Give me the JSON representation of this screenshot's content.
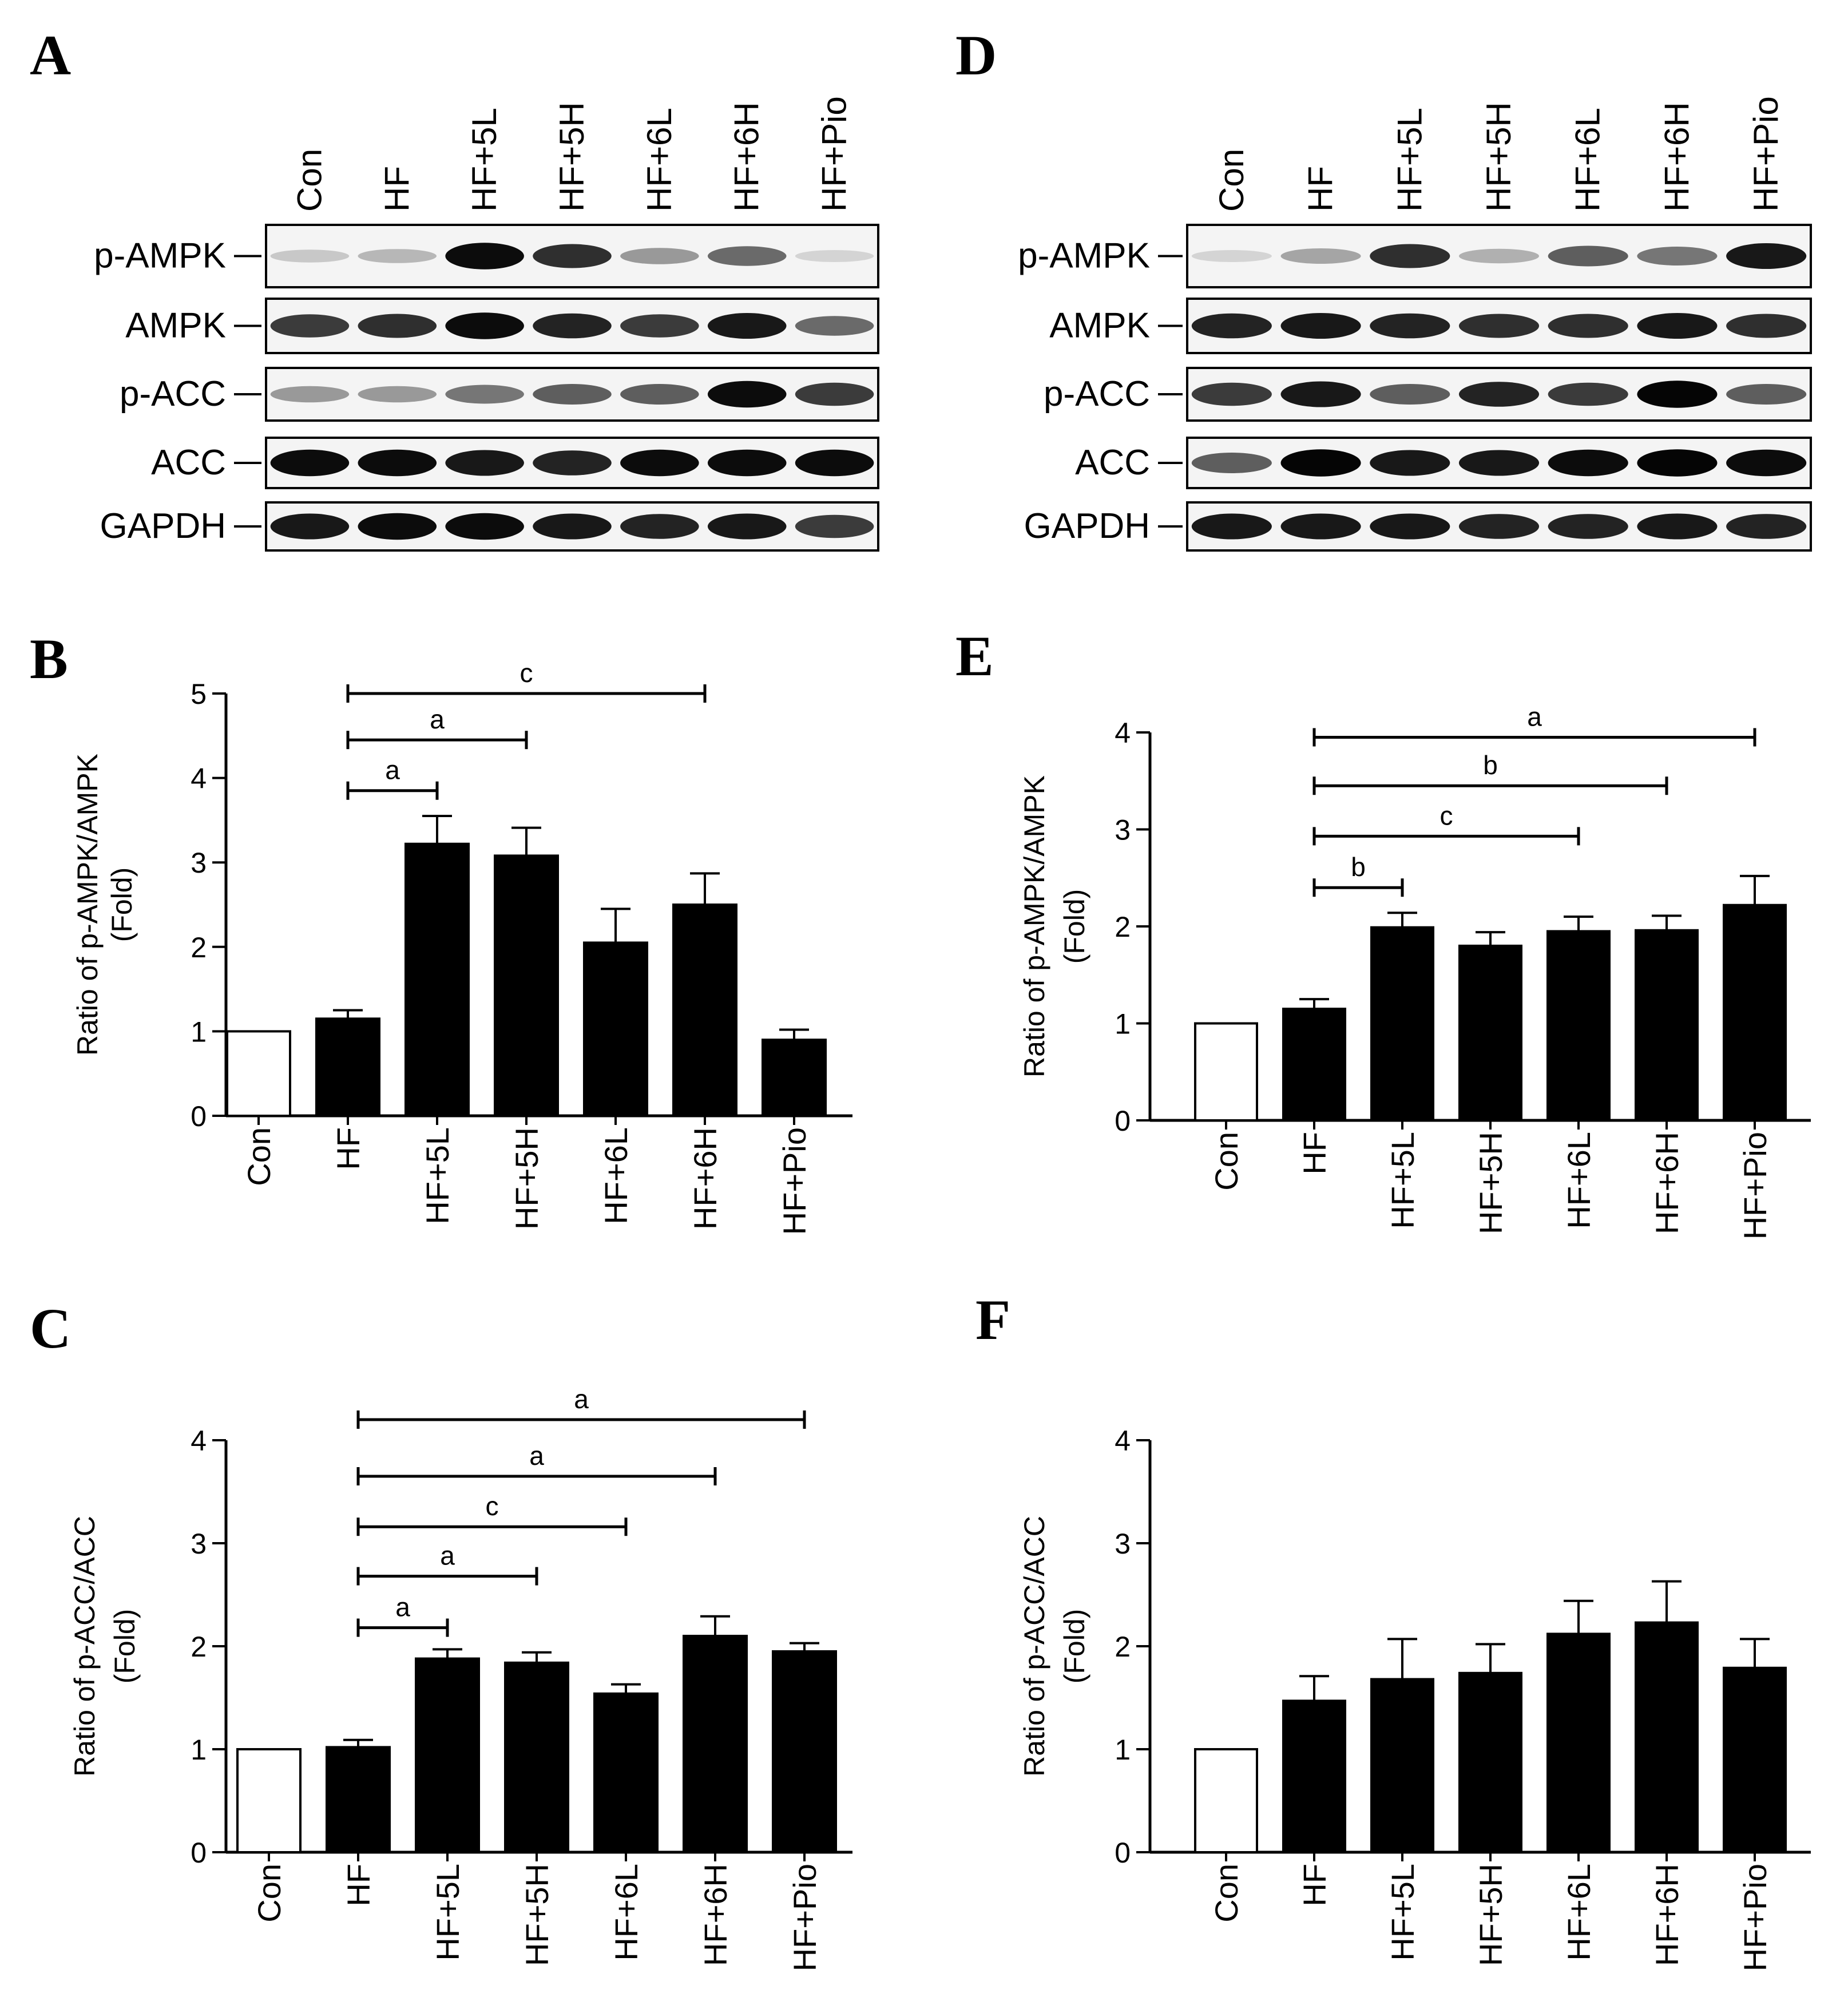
{
  "blots": [
    {
      "panel": "A",
      "lanes": [
        "Con",
        "HF",
        "HF+5L",
        "HF+5H",
        "HF+6L",
        "HF+6H",
        "HF+Pio"
      ],
      "rows": [
        {
          "label": "p-AMPK",
          "intensity": [
            0.15,
            0.22,
            0.95,
            0.8,
            0.35,
            0.55,
            0.1
          ]
        },
        {
          "label": "AMPK",
          "intensity": [
            0.75,
            0.8,
            0.95,
            0.85,
            0.75,
            0.9,
            0.55
          ]
        },
        {
          "label": "p-ACC",
          "intensity": [
            0.35,
            0.35,
            0.5,
            0.6,
            0.6,
            0.95,
            0.75
          ]
        },
        {
          "label": "ACC",
          "intensity": [
            0.95,
            0.95,
            0.9,
            0.85,
            0.95,
            0.95,
            0.95
          ]
        },
        {
          "label": "GAPDH",
          "intensity": [
            0.9,
            0.95,
            0.95,
            0.9,
            0.85,
            0.9,
            0.75
          ]
        }
      ]
    },
    {
      "panel": "D",
      "lanes": [
        "Con",
        "HF",
        "HF+5L",
        "HF+5H",
        "HF+6L",
        "HF+6H",
        "HF+Pio"
      ],
      "rows": [
        {
          "label": "p-AMPK",
          "intensity": [
            0.1,
            0.3,
            0.8,
            0.25,
            0.6,
            0.5,
            0.9
          ]
        },
        {
          "label": "AMPK",
          "intensity": [
            0.85,
            0.9,
            0.85,
            0.8,
            0.8,
            0.9,
            0.8
          ]
        },
        {
          "label": "p-ACC",
          "intensity": [
            0.75,
            0.9,
            0.6,
            0.85,
            0.75,
            0.98,
            0.6
          ]
        },
        {
          "label": "ACC",
          "intensity": [
            0.6,
            0.98,
            0.9,
            0.9,
            0.95,
            0.98,
            0.95
          ]
        },
        {
          "label": "GAPDH",
          "intensity": [
            0.9,
            0.9,
            0.9,
            0.85,
            0.85,
            0.9,
            0.85
          ]
        }
      ]
    }
  ],
  "chart_data": [
    {
      "panel": "B",
      "type": "bar",
      "categories": [
        "Con",
        "HF",
        "HF+5L",
        "HF+5H",
        "HF+6L",
        "HF+6H",
        "HF+Pio"
      ],
      "values": [
        1.0,
        1.15,
        3.22,
        3.08,
        2.05,
        2.5,
        0.9
      ],
      "errors": [
        0,
        0.1,
        0.33,
        0.33,
        0.4,
        0.37,
        0.12
      ],
      "fill": [
        "#ffffff",
        "#000000",
        "#000000",
        "#000000",
        "#000000",
        "#000000",
        "#000000"
      ],
      "ylabel": [
        "Ratio of p-AMPK/AMPK",
        "(Fold)"
      ],
      "ylim": [
        0,
        5
      ],
      "yticks": [
        0,
        1,
        2,
        3,
        4,
        5
      ],
      "significance": [
        {
          "from": "HF",
          "to": "HF+5L",
          "label": "a",
          "y": 3.85
        },
        {
          "from": "HF",
          "to": "HF+5H",
          "label": "a",
          "y": 4.45
        },
        {
          "from": "HF",
          "to": "HF+6H",
          "label": "c",
          "y": 5.0
        }
      ]
    },
    {
      "panel": "C",
      "type": "bar",
      "categories": [
        "Con",
        "HF",
        "HF+5L",
        "HF+5H",
        "HF+6L",
        "HF+6H",
        "HF+Pio"
      ],
      "values": [
        1.0,
        1.02,
        1.88,
        1.84,
        1.54,
        2.1,
        1.95
      ],
      "errors": [
        0,
        0.07,
        0.09,
        0.1,
        0.09,
        0.19,
        0.08
      ],
      "fill": [
        "#ffffff",
        "#000000",
        "#000000",
        "#000000",
        "#000000",
        "#000000",
        "#000000"
      ],
      "ylabel": [
        "Ratio of p-ACC/ACC",
        "(Fold)"
      ],
      "ylim": [
        0,
        4
      ],
      "yticks": [
        0,
        1,
        2,
        3,
        4
      ],
      "significance": [
        {
          "from": "HF",
          "to": "HF+5L",
          "label": "a",
          "y": 2.18
        },
        {
          "from": "HF",
          "to": "HF+5H",
          "label": "a",
          "y": 2.68
        },
        {
          "from": "HF",
          "to": "HF+6L",
          "label": "c",
          "y": 3.16
        },
        {
          "from": "HF",
          "to": "HF+6H",
          "label": "a",
          "y": 3.65
        },
        {
          "from": "HF",
          "to": "HF+Pio",
          "label": "a",
          "y": 4.2
        }
      ]
    },
    {
      "panel": "E",
      "type": "bar",
      "categories": [
        "Con",
        "HF",
        "HF+5L",
        "HF+5H",
        "HF+6L",
        "HF+6H",
        "HF+Pio"
      ],
      "values": [
        1.0,
        1.15,
        1.99,
        1.8,
        1.95,
        1.96,
        2.22
      ],
      "errors": [
        0,
        0.1,
        0.15,
        0.14,
        0.15,
        0.15,
        0.3
      ],
      "fill": [
        "#ffffff",
        "#000000",
        "#000000",
        "#000000",
        "#000000",
        "#000000",
        "#000000"
      ],
      "ylabel": [
        "Ratio of p-AMPK/AMPK",
        "(Fold)"
      ],
      "ylim": [
        0,
        4
      ],
      "yticks": [
        0,
        1,
        2,
        3,
        4
      ],
      "significance": [
        {
          "from": "HF",
          "to": "HF+5L",
          "label": "b",
          "y": 2.4
        },
        {
          "from": "HF",
          "to": "HF+6L",
          "label": "c",
          "y": 2.93
        },
        {
          "from": "HF",
          "to": "HF+6H",
          "label": "b",
          "y": 3.45
        },
        {
          "from": "HF",
          "to": "HF+Pio",
          "label": "a",
          "y": 3.95
        }
      ]
    },
    {
      "panel": "F",
      "type": "bar",
      "categories": [
        "Con",
        "HF",
        "HF+5L",
        "HF+5H",
        "HF+6L",
        "HF+6H",
        "HF+Pio"
      ],
      "values": [
        1.0,
        1.47,
        1.68,
        1.74,
        2.12,
        2.23,
        1.79
      ],
      "errors": [
        0,
        0.24,
        0.39,
        0.28,
        0.32,
        0.4,
        0.28
      ],
      "fill": [
        "#ffffff",
        "#000000",
        "#000000",
        "#000000",
        "#000000",
        "#000000",
        "#000000"
      ],
      "ylabel": [
        "Ratio of p-ACC/ACC",
        "(Fold)"
      ],
      "ylim": [
        0,
        4
      ],
      "yticks": [
        0,
        1,
        2,
        3,
        4
      ],
      "significance": []
    }
  ]
}
